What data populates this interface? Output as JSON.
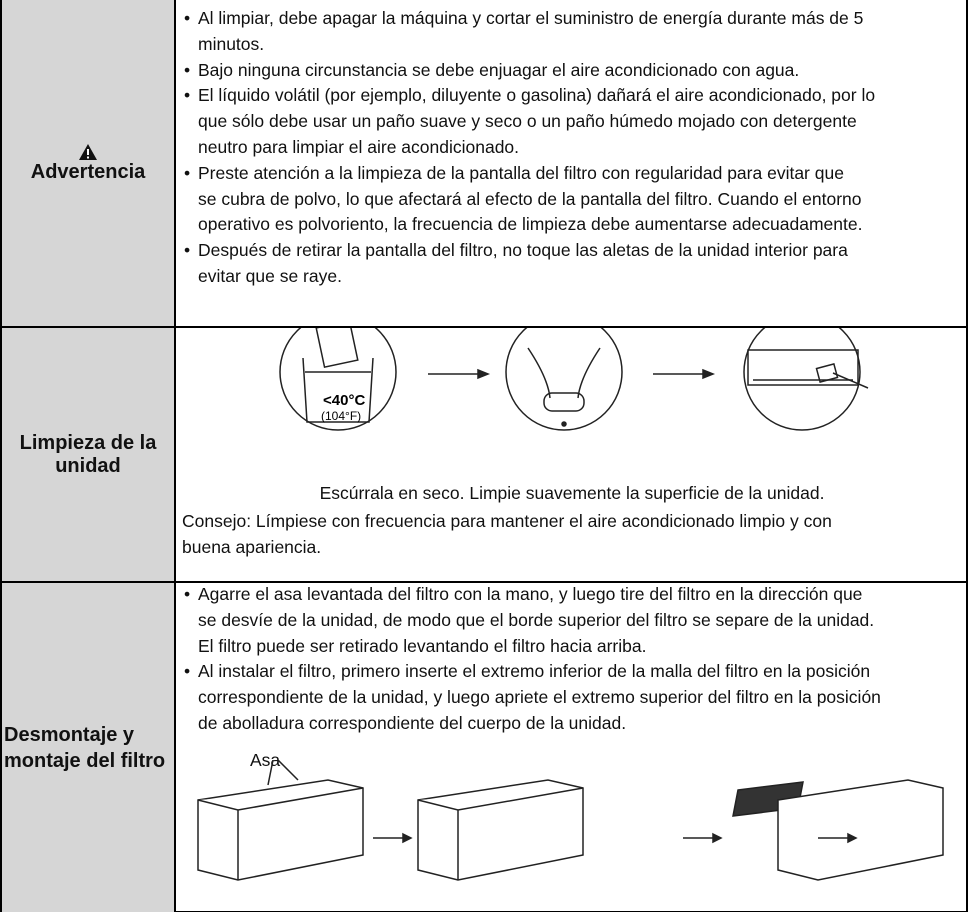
{
  "table": {
    "rows": [
      {
        "label": "Advertencia",
        "bullets": [
          [
            "Al limpiar, debe apagar la máquina y cortar el suministro de energía durante más de 5",
            "minutos."
          ],
          [
            "Bajo ninguna circunstancia se debe enjuagar el aire acondicionado con agua."
          ],
          [
            "El líquido volátil (por ejemplo, diluyente o gasolina) dañará el aire acondicionado, por lo",
            "que sólo debe usar un paño suave y seco o un paño húmedo mojado con detergente",
            "neutro para limpiar el aire acondicionado."
          ],
          [
            "Preste atención a la limpieza de la pantalla del filtro con regularidad para evitar que",
            "se cubra de polvo, lo que afectará al efecto de la pantalla del filtro. Cuando el entorno",
            "operativo es polvoriento, la frecuencia de limpieza debe aumentarse adecuadamente."
          ],
          [
            "Después de retirar la pantalla del filtro, no toque las aletas de la unidad interior para",
            "evitar que se raye."
          ]
        ]
      },
      {
        "label": "Limpieza de la unidad",
        "figure": {
          "temp_c": "<40°C",
          "temp_f": "(104°F)"
        },
        "caption": "Escúrrala en seco. Limpie suavemente la superficie de la unidad.",
        "tip": [
          "Consejo: Límpiese con frecuencia para mantener el aire acondicionado limpio y con",
          "buena apariencia."
        ]
      },
      {
        "label": "Desmontaje y montaje del filtro",
        "bullets": [
          [
            "Agarre el asa levantada del filtro con la mano, y luego tire del filtro en la dirección que",
            "se desvíe de la unidad, de modo que el borde superior del filtro se separe de la unidad.",
            "El filtro puede ser retirado levantando el filtro hacia arriba."
          ],
          [
            "Al instalar el filtro, primero inserte el extremo inferior de la malla del filtro en la posición",
            "correspondiente de la unidad, y luego apriete el extremo superior del filtro en la posición",
            "de abolladura correspondiente del cuerpo de la unidad."
          ]
        ],
        "figure": {
          "label": "Asa"
        }
      }
    ]
  }
}
